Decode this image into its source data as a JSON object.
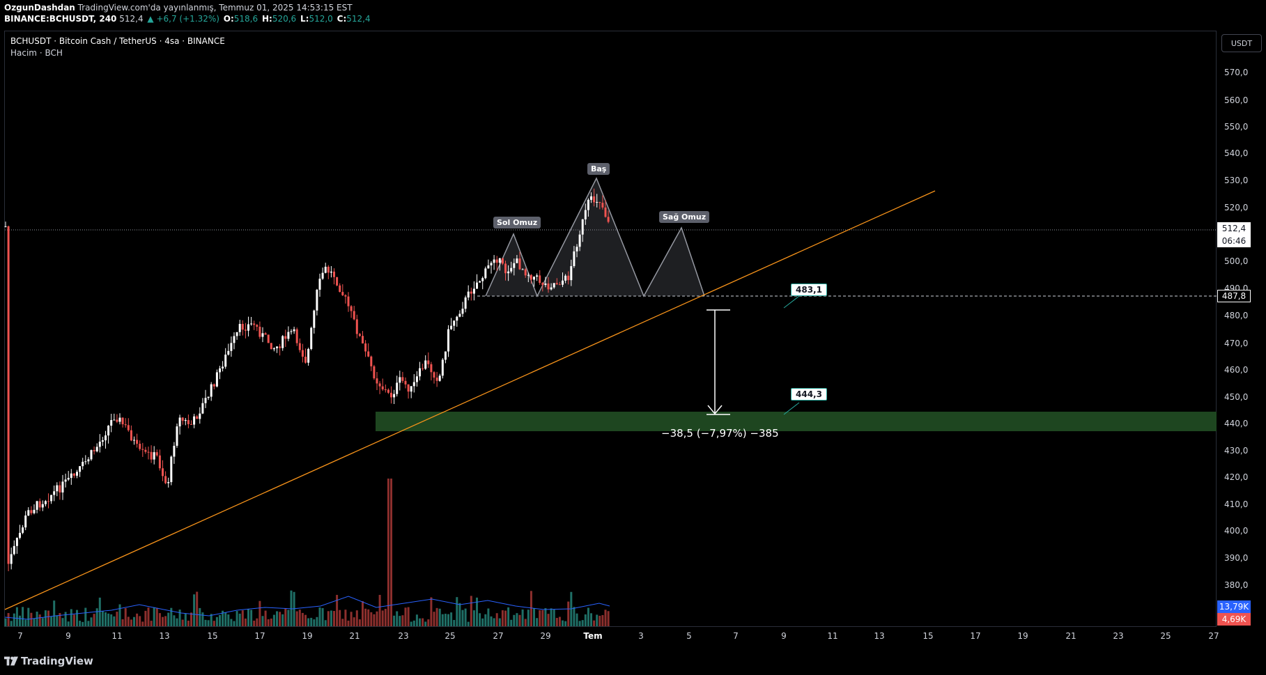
{
  "header": {
    "author": "OzgunDashdan",
    "published": "TradingView.com'da yayınlanmış, Temmuz 01, 2025 14:53:15 EST",
    "symbol_line": "BINANCE:BCHUSDT, 240",
    "last": "512,4",
    "change": "▲ +6,7 (+1.32%)",
    "o_label": "O:",
    "o": "518,6",
    "h_label": "H:",
    "h": "520,6",
    "l_label": "L:",
    "l": "512,0",
    "c_label": "C:",
    "c": "512,4"
  },
  "legend": {
    "title": "BCHUSDT · Bitcoin Cash / TetherUS · 4sa · BINANCE",
    "sub": "Hacim · BCH"
  },
  "price_scale": {
    "currency": "USDT",
    "ticks": [
      "570,0",
      "560,0",
      "550,0",
      "540,0",
      "530,0",
      "520,0",
      "500,0",
      "490,0",
      "480,0",
      "470,0",
      "460,0",
      "450,0",
      "440,0",
      "430,0",
      "420,0",
      "410,0",
      "400,0",
      "390,0",
      "380,0"
    ],
    "last_price": "512,4",
    "countdown": "06:46",
    "level_tag": "487,8",
    "vol_up": "13,79K",
    "vol_down": "4,69K"
  },
  "time_axis": {
    "ticks": [
      "7",
      "9",
      "11",
      "13",
      "15",
      "17",
      "19",
      "21",
      "23",
      "25",
      "27",
      "29",
      "Tem",
      "3",
      "5",
      "7",
      "9",
      "11",
      "13",
      "15",
      "17",
      "19",
      "21",
      "23",
      "25",
      "27"
    ]
  },
  "annotations": {
    "left_shoulder": "Sol Omuz",
    "head": "Baş",
    "right_shoulder": "Sağ Omuz",
    "neckline_label": "483,1",
    "target_label": "444,3",
    "measure": "−38,5 (−7,97%) −385"
  },
  "branding": {
    "logo": "TradingView"
  },
  "colors": {
    "up": "#26a69a",
    "down": "#ef5350",
    "trendline": "#f7931a",
    "zone": "#1e4620",
    "volume_ma": "#2962ff"
  }
}
